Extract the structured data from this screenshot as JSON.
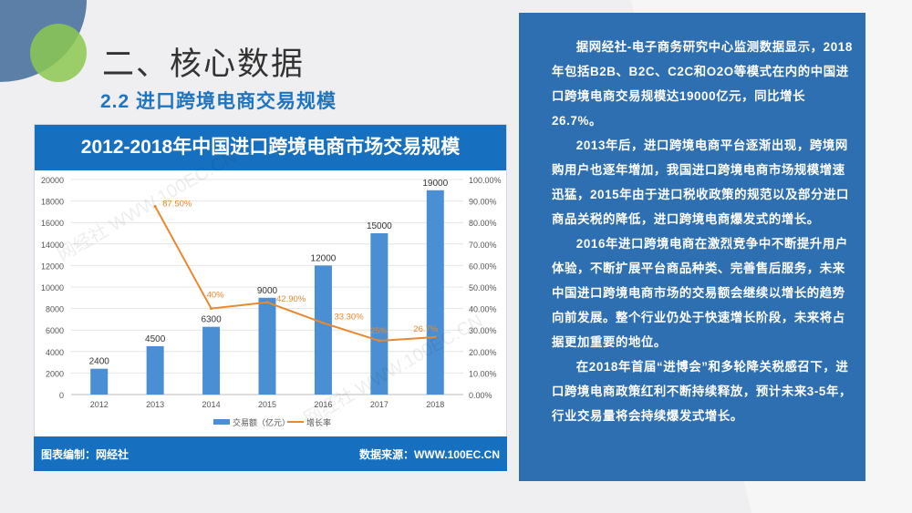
{
  "slide": {
    "title": "二、核心数据",
    "subtitle": "2.2 进口跨境电商交易规模"
  },
  "panel": {
    "footer_left": "图表编制：网经社",
    "footer_right": "数据来源：WWW.100EC.CN",
    "watermark": "网经社 WWW.100EC.CN"
  },
  "text": {
    "paragraphs": [
      "据网经社-电子商务研究中心监测数据显示，2018年包括B2B、B2C、C2C和O2O等模式在内的中国进口跨境电商交易规模达19000亿元，同比增长26.7%。",
      "2013年后，进口跨境电商平台逐渐出现，跨境网购用户也逐年增加，我国进口跨境电商市场规模增速迅猛，2015年由于进口税收政策的规范以及部分进口商品关税的降低，进口跨境电商爆发式的增长。",
      "2016年进口跨境电商在激烈竞争中不断提升用户体验，不断扩展平台商品种类、完善售后服务，未来中国进口跨境电商市场的交易额会继续以增长的趋势向前发展。整个行业仍处于快速增长阶段，未来将占据更加重要的地位。",
      "在2018年首届“进博会”和多轮降关税感召下，进口跨境电商政策红利不断持续释放，预计未来3-5年，行业交易量将会持续爆发式增长。"
    ]
  },
  "chart_data": {
    "type": "bar+line",
    "title": "2012-2018年中国进口跨境电商市场交易规模",
    "categories": [
      "2012",
      "2013",
      "2014",
      "2015",
      "2016",
      "2017",
      "2018"
    ],
    "series": [
      {
        "name": "交易额（亿元）",
        "type": "bar",
        "axis": "left",
        "values": [
          2400,
          4500,
          6300,
          9000,
          12000,
          15000,
          19000
        ],
        "labels": [
          "2400",
          "4500",
          "6300",
          "9000",
          "12000",
          "15000",
          "19000"
        ],
        "color": "#4a8fd4"
      },
      {
        "name": "增长率",
        "type": "line",
        "axis": "right",
        "values": [
          null,
          87.5,
          40,
          42.9,
          33.3,
          25,
          26.7
        ],
        "labels": [
          "",
          "87.50%",
          "40%",
          "42.90%",
          "33.30%",
          "25%",
          "26.7%"
        ],
        "color": "#e8882f"
      }
    ],
    "ylim_left": [
      0,
      20000
    ],
    "yticks_left": [
      "0",
      "2000",
      "4000",
      "6000",
      "8000",
      "10000",
      "12000",
      "14000",
      "16000",
      "18000",
      "20000"
    ],
    "ylim_right": [
      0,
      100
    ],
    "yticks_right": [
      "0.00%",
      "10.00%",
      "20.00%",
      "30.00%",
      "40.00%",
      "50.00%",
      "60.00%",
      "70.00%",
      "80.00%",
      "90.00%",
      "100.00%"
    ],
    "grid": true,
    "legend": "bottom"
  }
}
